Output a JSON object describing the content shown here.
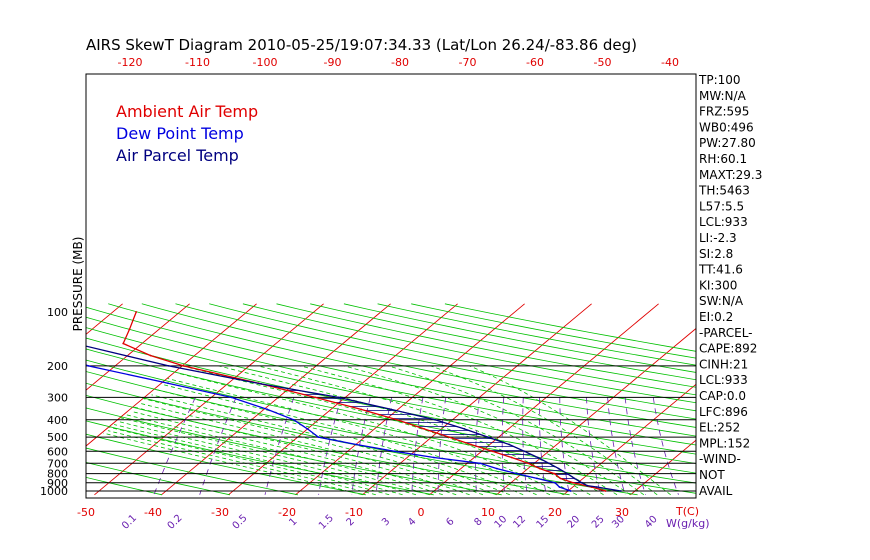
{
  "header": {
    "title": "AIRS SkewT Diagram 2010-05-25/19:07:34.33 (Lat/Lon 26.24/-83.86 deg)"
  },
  "legend": [
    {
      "label": "Ambient Air Temp",
      "color": "#e00000"
    },
    {
      "label": "Dew Point Temp",
      "color": "#0000e0"
    },
    {
      "label": "Air Parcel Temp",
      "color": "#000080"
    }
  ],
  "colors": {
    "isotherm": "#e00000",
    "dry_adiabat": "#00c000",
    "moist_adiabat": "#00c000",
    "mixing_ratio": "#6a1fb0",
    "isobar": "#000000",
    "temperature": "#e00000",
    "dewpoint": "#0000e0",
    "parcel": "#000080",
    "cape_hatch": "#000080"
  },
  "axes": {
    "y_label": "PRESSURE (MB)",
    "t_unit_label": "T(C)",
    "w_unit_label": "W(g/kg)",
    "pressure_ticks": [
      "100",
      "200",
      "300",
      "400",
      "500",
      "600",
      "700",
      "800",
      "900",
      "1000"
    ],
    "bottom_temp_ticks": [
      "-50",
      "-40",
      "-30",
      "-20",
      "-10",
      "0",
      "10",
      "20",
      "30"
    ],
    "top_temp_ticks": [
      "-120",
      "-110",
      "-100",
      "-90",
      "-80",
      "-70",
      "-60",
      "-50",
      "-40"
    ],
    "mixing_ratio_labels": [
      "0.1",
      "0.2",
      "0.5",
      "1",
      "1.5",
      "2",
      "3",
      "4",
      "6",
      "8",
      "10",
      "12",
      "15",
      "20",
      "25",
      "30",
      "40"
    ]
  },
  "indices": [
    "TP:100",
    "MW:N/A",
    "FRZ:595",
    "WB0:496",
    "PW:27.80",
    "RH:60.1",
    "MAXT:29.3",
    "TH:5463",
    "L57:5.5",
    "LCL:933",
    "LI:-2.3",
    "SI:2.8",
    "TT:41.6",
    "KI:300",
    "SW:N/A",
    "EI:0.2",
    "-PARCEL-",
    "CAPE:892",
    "CINH:21",
    "LCL:933",
    "CAP:0.0",
    "LFC:896",
    "EL:252",
    "MPL:152",
    "-WIND-",
    "NOT",
    "AVAIL"
  ],
  "chart_data": {
    "type": "line",
    "title": "AIRS SkewT Diagram 2010-05-25/19:07:34.33 (Lat/Lon 26.24/-83.86 deg)",
    "ylabel": "PRESSURE (MB)",
    "xlabel": "T(C)",
    "y_scale": "log",
    "ylim": [
      1000,
      100
    ],
    "xlim_bottom": [
      -50,
      35
    ],
    "xlim_top": [
      -120,
      -40
    ],
    "series": [
      {
        "name": "Ambient Air Temp",
        "points": [
          [
            1000,
            25.6
          ],
          [
            950,
            22.8
          ],
          [
            900,
            19.3
          ],
          [
            850,
            16.6
          ],
          [
            800,
            14.9
          ],
          [
            750,
            11.8
          ],
          [
            700,
            9.1
          ],
          [
            650,
            5.6
          ],
          [
            600,
            1.6
          ],
          [
            550,
            -2.8
          ],
          [
            500,
            -7.4
          ],
          [
            450,
            -12.6
          ],
          [
            400,
            -18.3
          ],
          [
            350,
            -25.5
          ],
          [
            300,
            -34.5
          ],
          [
            250,
            -45.5
          ],
          [
            200,
            -59.8
          ],
          [
            175,
            -66.6
          ],
          [
            150,
            -72.8
          ],
          [
            125,
            -74.4
          ],
          [
            100,
            -76.5
          ]
        ]
      },
      {
        "name": "Dew Point Temp",
        "points": [
          [
            1000,
            20.4
          ],
          [
            950,
            18.0
          ],
          [
            900,
            16.6
          ],
          [
            850,
            13.1
          ],
          [
            800,
            9.3
          ],
          [
            750,
            5.4
          ],
          [
            700,
            1.9
          ],
          [
            650,
            -6.0
          ],
          [
            600,
            -13.0
          ],
          [
            550,
            -19.9
          ],
          [
            500,
            -26.9
          ],
          [
            450,
            -30.0
          ],
          [
            400,
            -33.7
          ],
          [
            350,
            -39.5
          ],
          [
            300,
            -47.0
          ],
          [
            250,
            -59.0
          ],
          [
            200,
            -74.0
          ],
          [
            150,
            -85.8
          ],
          [
            125,
            -89.4
          ],
          [
            100,
            -92.5
          ]
        ]
      },
      {
        "name": "Air Parcel Temp",
        "points": [
          [
            1000,
            27.9
          ],
          [
            950,
            23.6
          ],
          [
            933,
            21.9
          ],
          [
            900,
            20.6
          ],
          [
            850,
            18.7
          ],
          [
            800,
            16.8
          ],
          [
            750,
            14.6
          ],
          [
            700,
            12.2
          ],
          [
            650,
            9.5
          ],
          [
            600,
            6.4
          ],
          [
            550,
            2.9
          ],
          [
            500,
            -1.6
          ],
          [
            450,
            -6.6
          ],
          [
            400,
            -12.6
          ],
          [
            350,
            -21.0
          ],
          [
            300,
            -31.0
          ],
          [
            252,
            -45.0
          ],
          [
            200,
            -62.0
          ],
          [
            150,
            -80.0
          ],
          [
            125,
            -92.0
          ],
          [
            100,
            -100.5
          ]
        ]
      }
    ]
  }
}
